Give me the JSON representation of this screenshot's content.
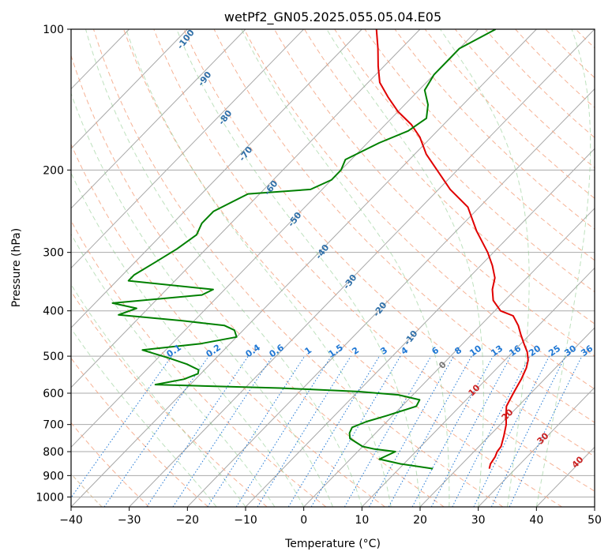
{
  "chart_data": {
    "type": "line",
    "title": "wetPf2_GN05.2025.055.05.04.E05",
    "xlabel": "Temperature (°C)",
    "ylabel": "Pressure (hPa)",
    "xlim": [
      -40,
      50
    ],
    "ylim_hpa": [
      1050,
      100
    ],
    "y_scale": "log",
    "skew": "skewed isotherms (Skew-T log-P diagram)",
    "grid": true,
    "x_ticks": [
      "−40",
      "−30",
      "−20",
      "−10",
      "0",
      "10",
      "20",
      "30",
      "40",
      "50"
    ],
    "y_ticks": [
      "100",
      "200",
      "300",
      "400",
      "500",
      "600",
      "700",
      "800",
      "900",
      "1000"
    ],
    "mixing_ratio_labels": [
      "0.1",
      "0.2",
      "0.4",
      "0.6",
      "1",
      "1.5",
      "2",
      "3",
      "4",
      "6",
      "8",
      "10",
      "13",
      "16",
      "20",
      "25",
      "30",
      "36"
    ],
    "dry_adiabat_labels": [
      "-100",
      "-90",
      "-80",
      "-70",
      "-60",
      "-50",
      "-40",
      "-30",
      "-20",
      "-10"
    ],
    "moist_adiabat_labels": [
      "0",
      "10",
      "20",
      "30",
      "40"
    ],
    "series": [
      {
        "role": "temperature",
        "color": "#e00000",
        "points": [
          [
            25.5,
            870
          ],
          [
            24.9,
            850
          ],
          [
            24.5,
            820
          ],
          [
            24.0,
            800
          ],
          [
            23.8,
            780
          ],
          [
            22.5,
            740
          ],
          [
            21.0,
            700
          ],
          [
            19.0,
            660
          ],
          [
            18.0,
            640
          ],
          [
            17.5,
            620
          ],
          [
            17.0,
            600
          ],
          [
            16.5,
            580
          ],
          [
            16.0,
            560
          ],
          [
            15.0,
            530
          ],
          [
            14.0,
            510
          ],
          [
            12.5,
            490
          ],
          [
            10.5,
            470
          ],
          [
            8.5,
            450
          ],
          [
            6.5,
            430
          ],
          [
            4.0,
            410
          ],
          [
            1.0,
            400
          ],
          [
            -2.0,
            380
          ],
          [
            -4.0,
            360
          ],
          [
            -5.5,
            340
          ],
          [
            -8.0,
            320
          ],
          [
            -11.0,
            300
          ],
          [
            -16.5,
            270
          ],
          [
            -22.0,
            240
          ],
          [
            -28.0,
            220
          ],
          [
            -33.5,
            200
          ],
          [
            -38.0,
            185
          ],
          [
            -42.0,
            170
          ],
          [
            -45.5,
            160
          ],
          [
            -50.0,
            150
          ],
          [
            -54.0,
            140
          ],
          [
            -58.0,
            130
          ],
          [
            -61.0,
            120
          ],
          [
            -64.0,
            110
          ],
          [
            -67.5,
            100
          ]
        ]
      },
      {
        "role": "dewpoint",
        "color": "#008000",
        "points": [
          [
            15.8,
            870
          ],
          [
            9.5,
            850
          ],
          [
            5.0,
            830
          ],
          [
            6.5,
            800
          ],
          [
            2.5,
            790
          ],
          [
            0.0,
            780
          ],
          [
            -3.5,
            750
          ],
          [
            -4.5,
            730
          ],
          [
            -5.0,
            710
          ],
          [
            -3.5,
            690
          ],
          [
            -1.0,
            670
          ],
          [
            2.5,
            640
          ],
          [
            2.0,
            620
          ],
          [
            -2.5,
            605
          ],
          [
            -10.0,
            595
          ],
          [
            -24.0,
            585
          ],
          [
            -46.0,
            575
          ],
          [
            -42.0,
            560
          ],
          [
            -40.5,
            545
          ],
          [
            -41.0,
            535
          ],
          [
            -44.0,
            520
          ],
          [
            -48.0,
            505
          ],
          [
            -54.0,
            485
          ],
          [
            -45.0,
            470
          ],
          [
            -40.0,
            455
          ],
          [
            -41.5,
            440
          ],
          [
            -44.0,
            430
          ],
          [
            -52.0,
            420
          ],
          [
            -64.0,
            408
          ],
          [
            -62.0,
            395
          ],
          [
            -67.0,
            385
          ],
          [
            -53.0,
            370
          ],
          [
            -52.0,
            360
          ],
          [
            -68.0,
            345
          ],
          [
            -68.0,
            335
          ],
          [
            -66.5,
            315
          ],
          [
            -65.0,
            295
          ],
          [
            -64.0,
            275
          ],
          [
            -65.0,
            260
          ],
          [
            -65.0,
            245
          ],
          [
            -62.0,
            225
          ],
          [
            -52.0,
            220
          ],
          [
            -50.0,
            210
          ],
          [
            -50.0,
            200
          ],
          [
            -51.0,
            190
          ],
          [
            -48.0,
            175
          ],
          [
            -45.0,
            165
          ],
          [
            -44.0,
            155
          ],
          [
            -46.0,
            145
          ],
          [
            -49.0,
            135
          ],
          [
            -50.0,
            125
          ],
          [
            -50.0,
            115
          ],
          [
            -50.0,
            110
          ],
          [
            -47.0,
            100
          ]
        ]
      }
    ]
  }
}
